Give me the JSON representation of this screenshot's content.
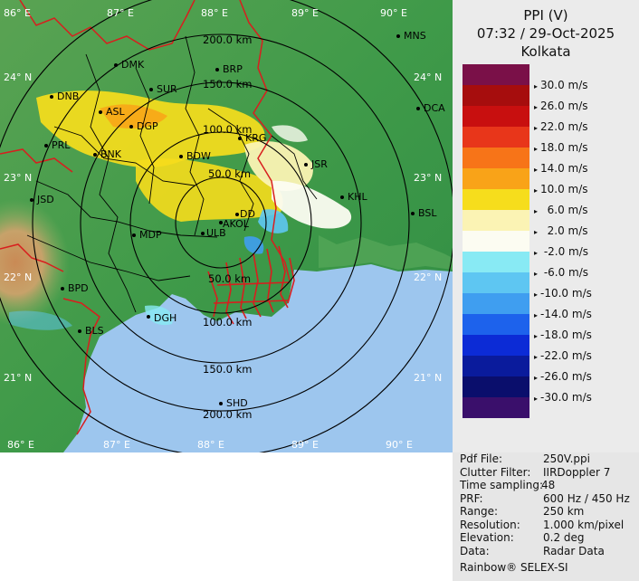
{
  "header": {
    "product": "PPI (V)",
    "datetime": "07:32 / 29-Oct-2025",
    "station": "Kolkata"
  },
  "legend": [
    {
      "color": "#7a1048",
      "label": "30.0 m/s"
    },
    {
      "color": "#a60d0d",
      "label": "26.0 m/s"
    },
    {
      "color": "#c80f0f",
      "label": "22.0 m/s"
    },
    {
      "color": "#e8361a",
      "label": "18.0 m/s"
    },
    {
      "color": "#f77418",
      "label": "14.0 m/s"
    },
    {
      "color": "#f9a318",
      "label": "10.0 m/s"
    },
    {
      "color": "#f6dd1c",
      "label": "  6.0 m/s"
    },
    {
      "color": "#fbf3b4",
      "label": "  2.0 m/s"
    },
    {
      "color": "#fcfcf2",
      "label": " -2.0 m/s"
    },
    {
      "color": "#88eaf4",
      "label": " -6.0 m/s"
    },
    {
      "color": "#5ec6f2",
      "label": "-10.0 m/s"
    },
    {
      "color": "#3f9ef0",
      "label": "-14.0 m/s"
    },
    {
      "color": "#1d62ec",
      "label": "-18.0 m/s"
    },
    {
      "color": "#0c2bd6",
      "label": "-22.0 m/s"
    },
    {
      "color": "#0a1b9c",
      "label": "-26.0 m/s"
    },
    {
      "color": "#0a0e6c",
      "label": "-30.0 m/s"
    },
    {
      "color": "#3a0f6b",
      "label": ""
    }
  ],
  "info": [
    {
      "key": "Pdf File:",
      "value": "250V.ppi"
    },
    {
      "key": "Clutter Filter:",
      "value": "IIRDoppler 7"
    },
    {
      "key": "Time sampling:",
      "value": "48"
    },
    {
      "key": "PRF:",
      "value": "600 Hz / 450 Hz"
    },
    {
      "key": "Range:",
      "value": "250 km"
    },
    {
      "key": "Resolution:",
      "value": "1.000 km/pixel"
    },
    {
      "key": "Elevation:",
      "value": "0.2 deg"
    },
    {
      "key": "Data:",
      "value": "Radar Data"
    }
  ],
  "credit": "Rainbow® SELEX-SI",
  "map": {
    "lon_labels_top": [
      "86° E",
      "87° E",
      "88° E",
      "89° E",
      "90° E"
    ],
    "lon_labels_bottom": [
      "86° E",
      "87° E",
      "88° E",
      "89° E",
      "90° E"
    ],
    "lat_labels_left": [
      "24° N",
      "23° N",
      "22° N",
      "21° N"
    ],
    "lat_labels_right": [
      "24° N",
      "23° N",
      "22° N",
      "21° N"
    ],
    "range_rings_top": [
      "200.0 km",
      "150.0 km",
      "100.0 km",
      "50.0 km"
    ],
    "range_rings_bottom": [
      "50.0 km",
      "100.0 km",
      "150.0 km",
      "200.0 km"
    ],
    "stations": [
      "MNS",
      "DMK",
      "BRP",
      "DNB",
      "SUR",
      "ASL",
      "DCA",
      "DGP",
      "KRG",
      "PRL",
      "BNK",
      "BDW",
      "JSR",
      "KHL",
      "JSD",
      "DD",
      "AKOL",
      "BSL",
      "MDP",
      "ULB",
      "BPD",
      "DGH",
      "BLS",
      "SHD"
    ],
    "colors": {
      "sea": "#9dc6ee",
      "land": "#3e9a48",
      "rings": "#000000",
      "boundary": "#d81e1e",
      "districts": "#000000"
    }
  }
}
